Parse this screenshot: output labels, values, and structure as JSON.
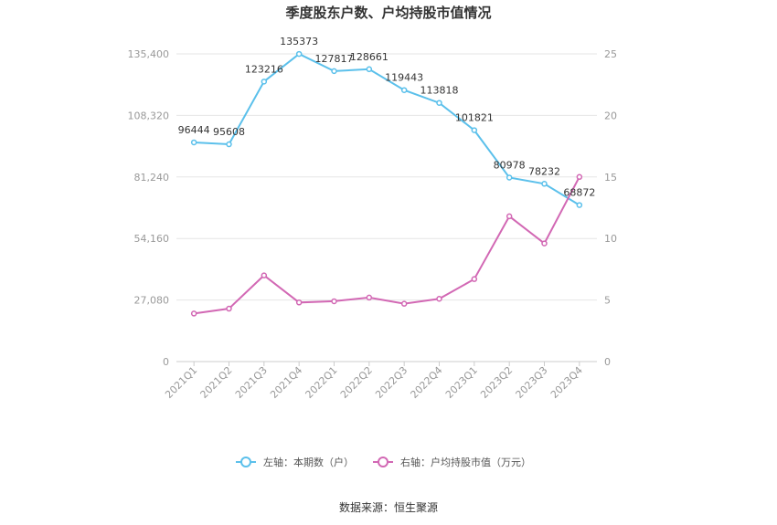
{
  "chart_data": {
    "type": "line",
    "title": "季度股东户数、户均持股市值情况",
    "categories": [
      "2021Q1",
      "2021Q2",
      "2021Q3",
      "2021Q4",
      "2022Q1",
      "2022Q2",
      "2022Q3",
      "2022Q4",
      "2023Q1",
      "2023Q2",
      "2023Q3",
      "2023Q4"
    ],
    "left_axis": {
      "ticks": [
        "0",
        "27,080",
        "54,160",
        "81,240",
        "108,320",
        "135,400"
      ],
      "min": 0,
      "max": 135400
    },
    "right_axis": {
      "ticks": [
        "0",
        "5",
        "10",
        "15",
        "20",
        "25"
      ],
      "min": 0,
      "max": 25
    },
    "series": [
      {
        "name": "左轴：本期数（户）",
        "axis": "left",
        "color": "#5bc0eb",
        "values": [
          96444,
          95608,
          123216,
          135373,
          127817,
          128661,
          119443,
          113818,
          101821,
          80978,
          78232,
          68872
        ],
        "labels": [
          "96444",
          "95608",
          "123216",
          "135373",
          "127817",
          "128661",
          "119443",
          "113818",
          "101821",
          "80978",
          "78232",
          "68872"
        ]
      },
      {
        "name": "右轴：户均持股市值（万元）",
        "axis": "right",
        "color": "#d268b4",
        "values": [
          3.9,
          4.3,
          7.0,
          4.8,
          4.9,
          5.2,
          4.7,
          5.1,
          6.7,
          11.8,
          9.6,
          15.0
        ]
      }
    ],
    "grid": true,
    "legend_position": "bottom"
  },
  "source": "数据来源：恒生聚源"
}
